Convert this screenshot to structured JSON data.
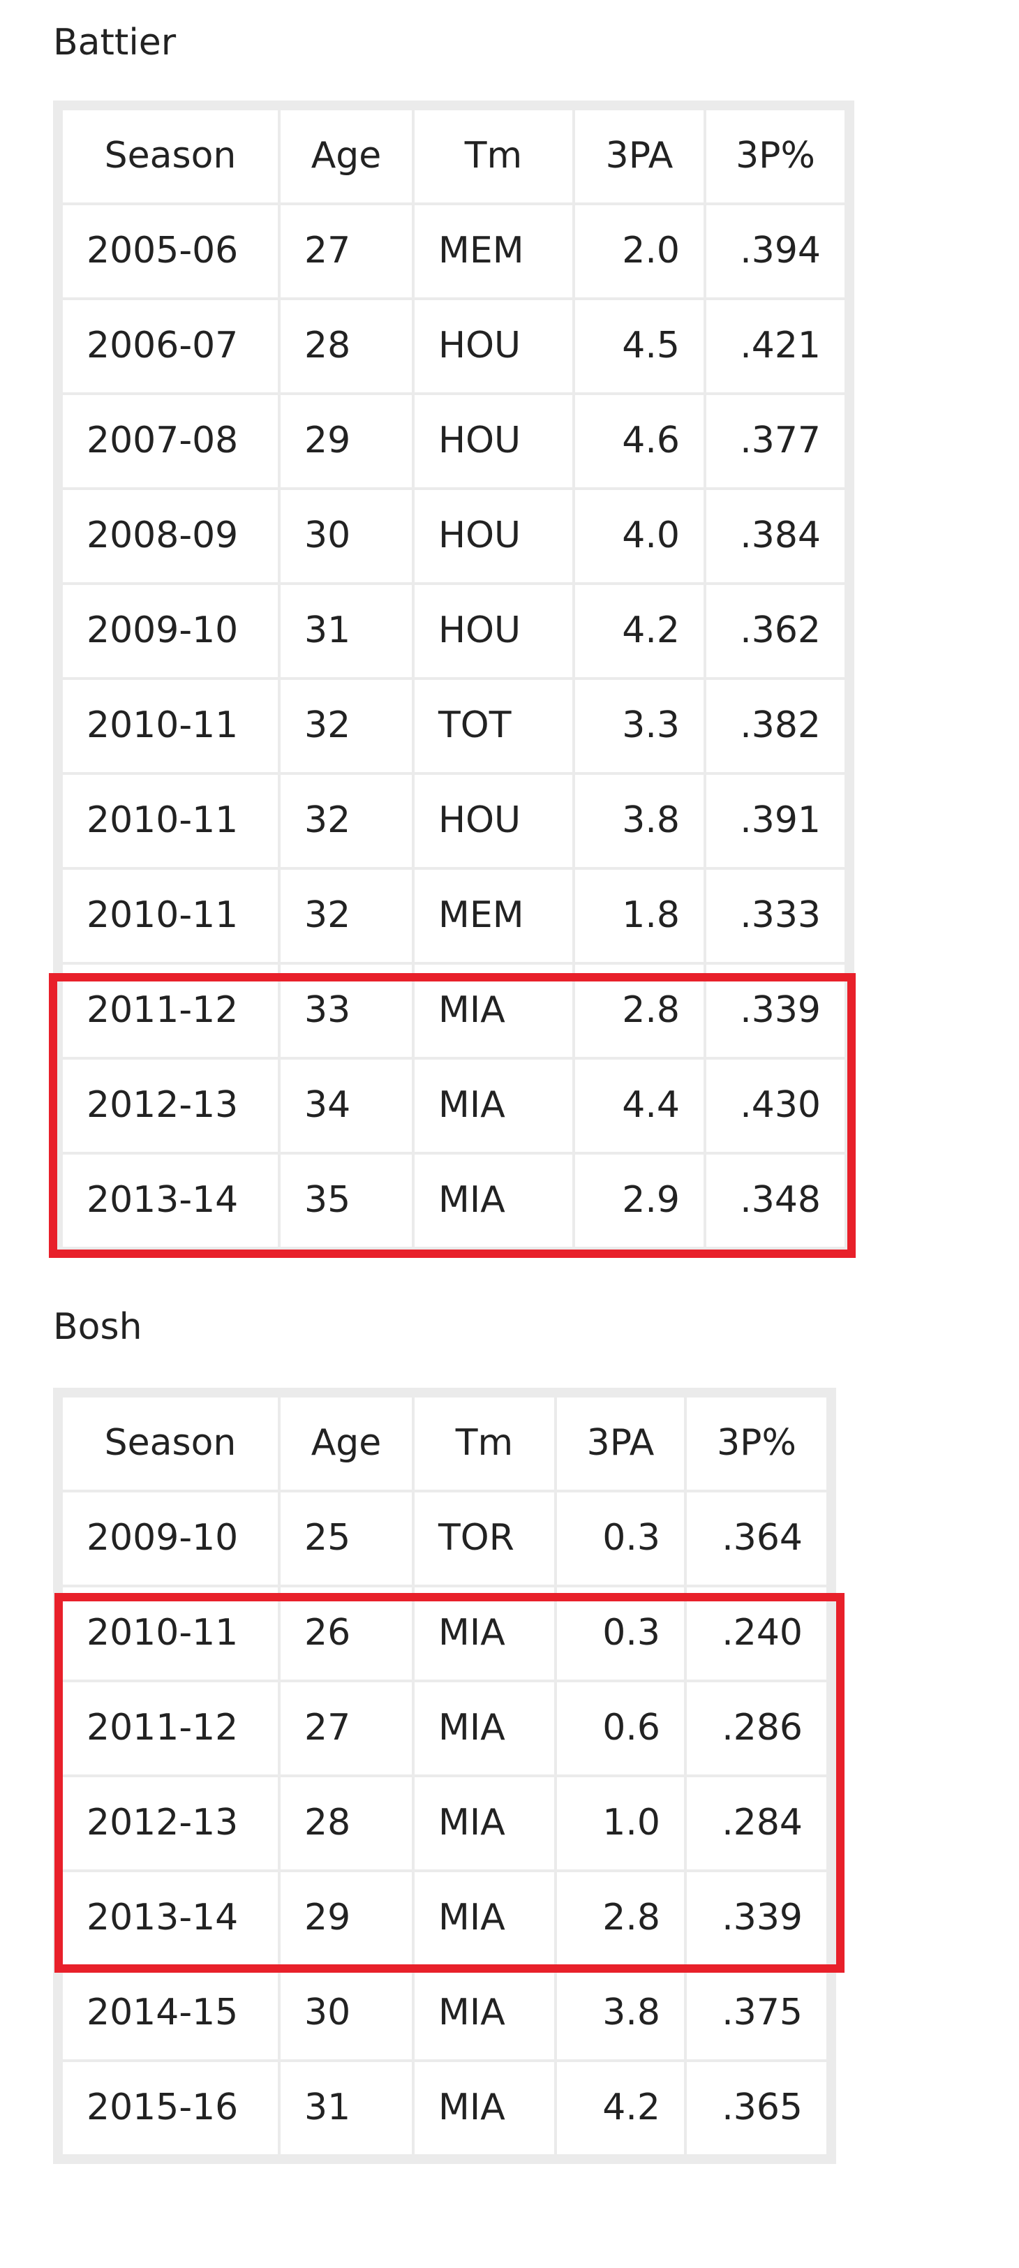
{
  "tables": [
    {
      "title": "Battier",
      "columns": [
        "Season",
        "Age",
        "Tm",
        "3PA",
        "3P%"
      ],
      "rows": [
        [
          "2005-06",
          "27",
          "MEM",
          "2.0",
          ".394"
        ],
        [
          "2006-07",
          "28",
          "HOU",
          "4.5",
          ".421"
        ],
        [
          "2007-08",
          "29",
          "HOU",
          "4.6",
          ".377"
        ],
        [
          "2008-09",
          "30",
          "HOU",
          "4.0",
          ".384"
        ],
        [
          "2009-10",
          "31",
          "HOU",
          "4.2",
          ".362"
        ],
        [
          "2010-11",
          "32",
          "TOT",
          "3.3",
          ".382"
        ],
        [
          "2010-11",
          "32",
          "HOU",
          "3.8",
          ".391"
        ],
        [
          "2010-11",
          "32",
          "MEM",
          "1.8",
          ".333"
        ],
        [
          "2011-12",
          "33",
          "MIA",
          "2.8",
          ".339"
        ],
        [
          "2012-13",
          "34",
          "MIA",
          "4.4",
          ".430"
        ],
        [
          "2013-14",
          "35",
          "MIA",
          "2.9",
          ".348"
        ]
      ]
    },
    {
      "title": "Bosh",
      "columns": [
        "Season",
        "Age",
        "Tm",
        "3PA",
        "3P%"
      ],
      "rows": [
        [
          "2009-10",
          "25",
          "TOR",
          "0.3",
          ".364"
        ],
        [
          "2010-11",
          "26",
          "MIA",
          "0.3",
          ".240"
        ],
        [
          "2011-12",
          "27",
          "MIA",
          "0.6",
          ".286"
        ],
        [
          "2012-13",
          "28",
          "MIA",
          "1.0",
          ".284"
        ],
        [
          "2013-14",
          "29",
          "MIA",
          "2.8",
          ".339"
        ],
        [
          "2014-15",
          "30",
          "MIA",
          "3.8",
          ".375"
        ],
        [
          "2015-16",
          "31",
          "MIA",
          "4.2",
          ".365"
        ]
      ]
    }
  ]
}
